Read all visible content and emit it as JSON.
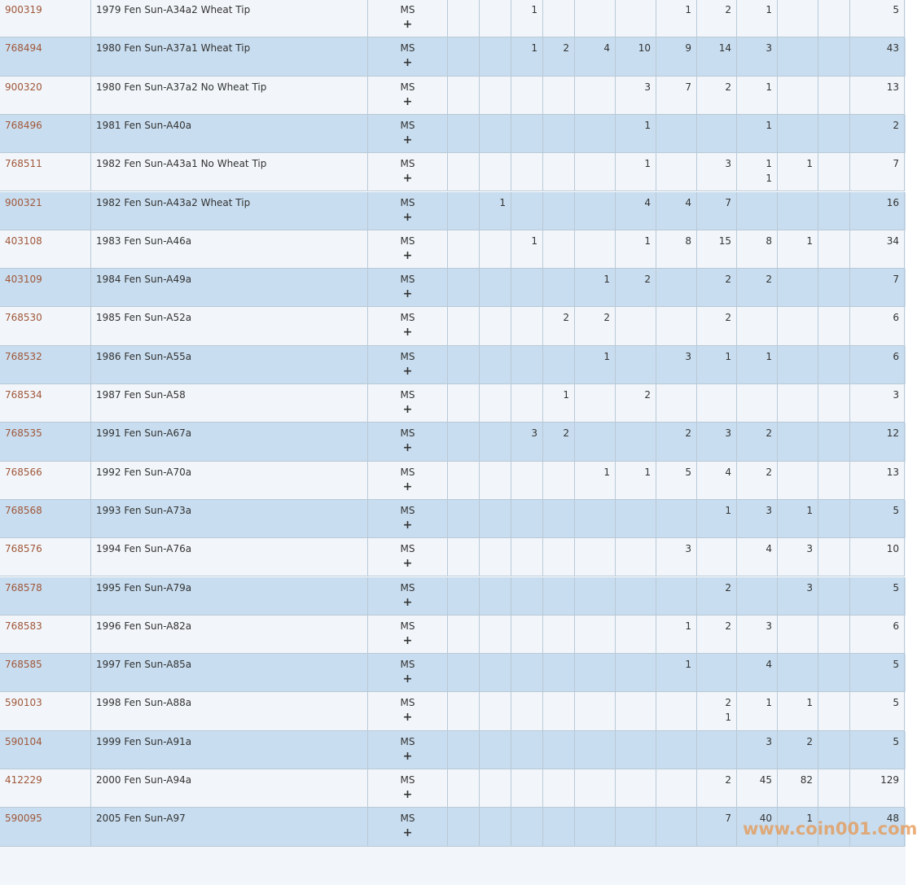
{
  "table": {
    "rows": [
      {
        "id": "900319",
        "description": "1979 Fen Sun-A34a2 Wheat Tip",
        "designation": "MS",
        "plus": "+",
        "counts": [
          null,
          null,
          1,
          null,
          null,
          null,
          1,
          2,
          1,
          null,
          null
        ],
        "total": 5
      },
      {
        "id": "768494",
        "description": "1980 Fen Sun-A37a1 Wheat Tip",
        "designation": "MS",
        "plus": "+",
        "counts": [
          null,
          null,
          1,
          2,
          4,
          10,
          9,
          14,
          3,
          null,
          null
        ],
        "total": 43
      },
      {
        "id": "900320",
        "description": "1980 Fen Sun-A37a2 No Wheat Tip",
        "designation": "MS",
        "plus": "+",
        "counts": [
          null,
          null,
          null,
          null,
          null,
          3,
          7,
          2,
          1,
          null,
          null
        ],
        "total": 13
      },
      {
        "id": "768496",
        "description": "1981 Fen Sun-A40a",
        "designation": "MS",
        "plus": "+",
        "counts": [
          null,
          null,
          null,
          null,
          null,
          1,
          null,
          null,
          1,
          null,
          null
        ],
        "total": 2
      },
      {
        "id": "768511",
        "description": "1982 Fen Sun-A43a1 No Wheat Tip",
        "designation": "MS",
        "plus": "+",
        "counts": [
          null,
          null,
          null,
          null,
          null,
          1,
          null,
          3,
          1,
          1,
          null
        ],
        "plus_counts": [
          null,
          null,
          null,
          null,
          null,
          null,
          null,
          null,
          1,
          null,
          null
        ],
        "total": 7
      },
      {
        "id": "900321",
        "description": "1982 Fen Sun-A43a2 Wheat Tip",
        "designation": "MS",
        "plus": "+",
        "counts": [
          null,
          1,
          null,
          null,
          null,
          4,
          4,
          7,
          null,
          null,
          null
        ],
        "total": 16
      },
      {
        "id": "403108",
        "description": "1983 Fen Sun-A46a",
        "designation": "MS",
        "plus": "+",
        "counts": [
          null,
          null,
          1,
          null,
          null,
          1,
          8,
          15,
          8,
          1,
          null
        ],
        "total": 34
      },
      {
        "id": "403109",
        "description": "1984 Fen Sun-A49a",
        "designation": "MS",
        "plus": "+",
        "counts": [
          null,
          null,
          null,
          null,
          1,
          2,
          null,
          2,
          2,
          null,
          null
        ],
        "total": 7
      },
      {
        "id": "768530",
        "description": "1985 Fen Sun-A52a",
        "designation": "MS",
        "plus": "+",
        "counts": [
          null,
          null,
          null,
          2,
          2,
          null,
          null,
          2,
          null,
          null,
          null
        ],
        "total": 6
      },
      {
        "id": "768532",
        "description": "1986 Fen Sun-A55a",
        "designation": "MS",
        "plus": "+",
        "counts": [
          null,
          null,
          null,
          null,
          1,
          null,
          3,
          1,
          1,
          null,
          null
        ],
        "total": 6
      },
      {
        "id": "768534",
        "description": "1987 Fen Sun-A58",
        "designation": "MS",
        "plus": "+",
        "counts": [
          null,
          null,
          null,
          1,
          null,
          2,
          null,
          null,
          null,
          null,
          null
        ],
        "total": 3
      },
      {
        "id": "768535",
        "description": "1991 Fen Sun-A67a",
        "designation": "MS",
        "plus": "+",
        "counts": [
          null,
          null,
          3,
          2,
          null,
          null,
          2,
          3,
          2,
          null,
          null
        ],
        "total": 12
      },
      {
        "id": "768566",
        "description": "1992 Fen Sun-A70a",
        "designation": "MS",
        "plus": "+",
        "counts": [
          null,
          null,
          null,
          null,
          1,
          1,
          5,
          4,
          2,
          null,
          null
        ],
        "total": 13
      },
      {
        "id": "768568",
        "description": "1993 Fen Sun-A73a",
        "designation": "MS",
        "plus": "+",
        "counts": [
          null,
          null,
          null,
          null,
          null,
          null,
          null,
          1,
          3,
          1,
          null
        ],
        "total": 5
      },
      {
        "id": "768576",
        "description": "1994 Fen Sun-A76a",
        "designation": "MS",
        "plus": "+",
        "counts": [
          null,
          null,
          null,
          null,
          null,
          null,
          3,
          null,
          4,
          3,
          null
        ],
        "total": 10
      },
      {
        "id": "768578",
        "description": "1995 Fen Sun-A79a",
        "designation": "MS",
        "plus": "+",
        "counts": [
          null,
          null,
          null,
          null,
          null,
          null,
          null,
          2,
          null,
          3,
          null
        ],
        "total": 5
      },
      {
        "id": "768583",
        "description": "1996 Fen Sun-A82a",
        "designation": "MS",
        "plus": "+",
        "counts": [
          null,
          null,
          null,
          null,
          null,
          null,
          1,
          2,
          3,
          null,
          null
        ],
        "total": 6
      },
      {
        "id": "768585",
        "description": "1997 Fen Sun-A85a",
        "designation": "MS",
        "plus": "+",
        "counts": [
          null,
          null,
          null,
          null,
          null,
          null,
          1,
          null,
          4,
          null,
          null
        ],
        "total": 5
      },
      {
        "id": "590103",
        "description": "1998 Fen Sun-A88a",
        "designation": "MS",
        "plus": "+",
        "counts": [
          null,
          null,
          null,
          null,
          null,
          null,
          null,
          2,
          1,
          1,
          null
        ],
        "plus_counts": [
          null,
          null,
          null,
          null,
          null,
          null,
          null,
          1,
          null,
          null,
          null
        ],
        "total": 5
      },
      {
        "id": "590104",
        "description": "1999 Fen Sun-A91a",
        "designation": "MS",
        "plus": "+",
        "counts": [
          null,
          null,
          null,
          null,
          null,
          null,
          null,
          null,
          3,
          2,
          null
        ],
        "total": 5
      },
      {
        "id": "412229",
        "description": "2000 Fen Sun-A94a",
        "designation": "MS",
        "plus": "+",
        "counts": [
          null,
          null,
          null,
          null,
          null,
          null,
          null,
          2,
          45,
          82,
          null
        ],
        "total": 129
      },
      {
        "id": "590095",
        "description": "2005 Fen Sun-A97",
        "designation": "MS",
        "plus": "+",
        "counts": [
          null,
          null,
          null,
          null,
          null,
          null,
          null,
          7,
          40,
          1,
          null
        ],
        "total": 48
      }
    ]
  },
  "watermark": "www.coin001.com"
}
